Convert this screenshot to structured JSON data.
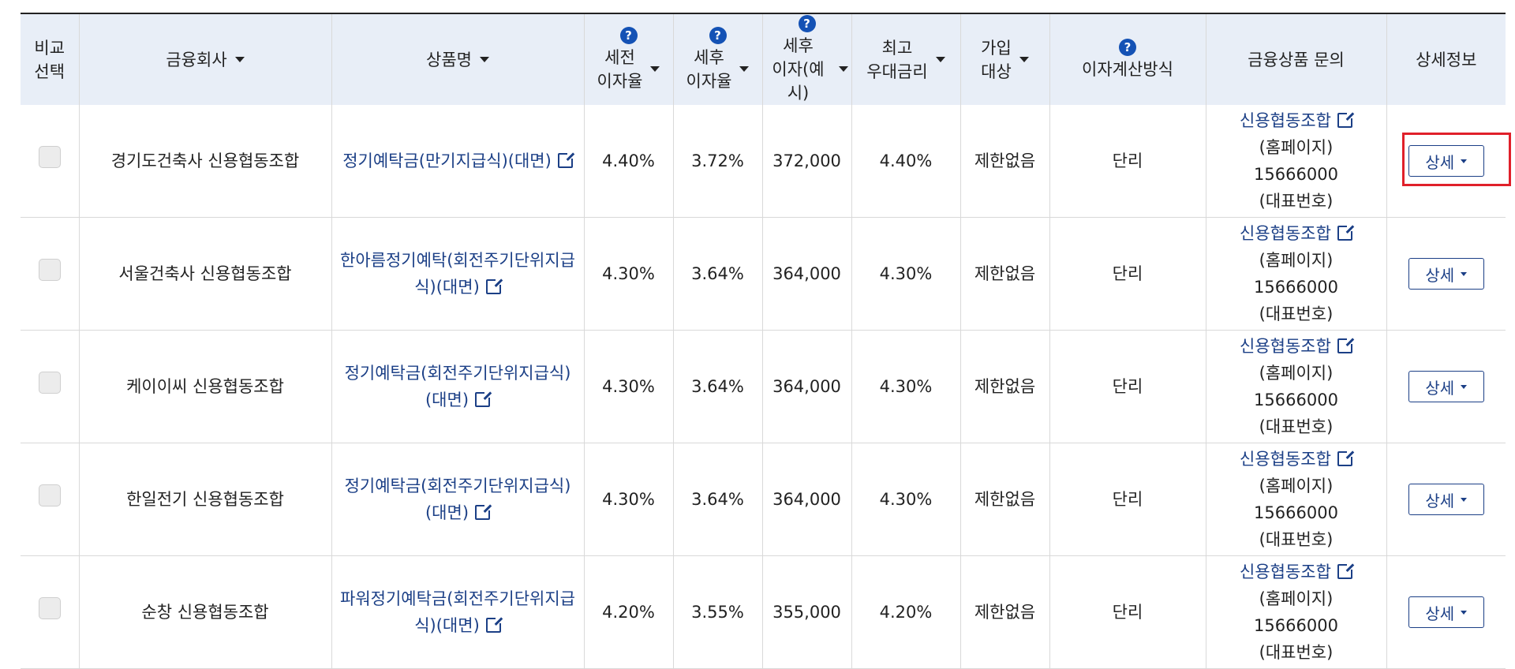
{
  "headers": {
    "compare": [
      "비교",
      "선택"
    ],
    "company": "금융회사",
    "product": "상품명",
    "pretax_rate": [
      "세전",
      "이자율"
    ],
    "aftertax_rate": [
      "세후",
      "이자율"
    ],
    "aftertax_interest": [
      "세후",
      "이자(예시)"
    ],
    "max_pref_rate": [
      "최고",
      "우대금리"
    ],
    "eligibility": [
      "가입",
      "대상"
    ],
    "calc_method": "이자계산방식",
    "inquiry": "금융상품 문의",
    "details": "상세정보",
    "help_glyph": "?"
  },
  "rows": [
    {
      "company": "경기도건축사 신용협동조합",
      "product": "정기예탁금(만기지급식)(대면)",
      "pretax": "4.40%",
      "aftertax": "3.72%",
      "interest": "372,000",
      "maxrate": "4.40%",
      "eligibility": "제한없음",
      "method": "단리",
      "inq_link": "신용협동조합",
      "inq_home": "(홈페이지)",
      "inq_phone": "15666000",
      "inq_rep": "(대표번호)",
      "detail": "상세"
    },
    {
      "company": "서울건축사 신용협동조합",
      "product": "한아름정기예탁(회전주기단위지급식)(대면)",
      "pretax": "4.30%",
      "aftertax": "3.64%",
      "interest": "364,000",
      "maxrate": "4.30%",
      "eligibility": "제한없음",
      "method": "단리",
      "inq_link": "신용협동조합",
      "inq_home": "(홈페이지)",
      "inq_phone": "15666000",
      "inq_rep": "(대표번호)",
      "detail": "상세"
    },
    {
      "company": "케이이씨 신용협동조합",
      "product": "정기예탁금(회전주기단위지급식)(대면)",
      "pretax": "4.30%",
      "aftertax": "3.64%",
      "interest": "364,000",
      "maxrate": "4.30%",
      "eligibility": "제한없음",
      "method": "단리",
      "inq_link": "신용협동조합",
      "inq_home": "(홈페이지)",
      "inq_phone": "15666000",
      "inq_rep": "(대표번호)",
      "detail": "상세"
    },
    {
      "company": "한일전기 신용협동조합",
      "product": "정기예탁금(회전주기단위지급식)(대면)",
      "pretax": "4.30%",
      "aftertax": "3.64%",
      "interest": "364,000",
      "maxrate": "4.30%",
      "eligibility": "제한없음",
      "method": "단리",
      "inq_link": "신용협동조합",
      "inq_home": "(홈페이지)",
      "inq_phone": "15666000",
      "inq_rep": "(대표번호)",
      "detail": "상세"
    },
    {
      "company": "순창 신용협동조합",
      "product": "파워정기예탁금(회전주기단위지급식)(대면)",
      "pretax": "4.20%",
      "aftertax": "3.55%",
      "interest": "355,000",
      "maxrate": "4.20%",
      "eligibility": "제한없음",
      "method": "단리",
      "inq_link": "신용협동조합",
      "inq_home": "(홈페이지)",
      "inq_phone": "15666000",
      "inq_rep": "(대표번호)",
      "detail": "상세"
    }
  ],
  "colors": {
    "header_bg": "#e8eef7",
    "link": "#1b3f86",
    "help_icon": "#1452b5",
    "highlight": "#e0202a"
  },
  "icons": {
    "external": "external-link-icon",
    "help": "help-icon",
    "sort": "sort-caret-icon",
    "dropdown": "chevron-down-icon"
  }
}
